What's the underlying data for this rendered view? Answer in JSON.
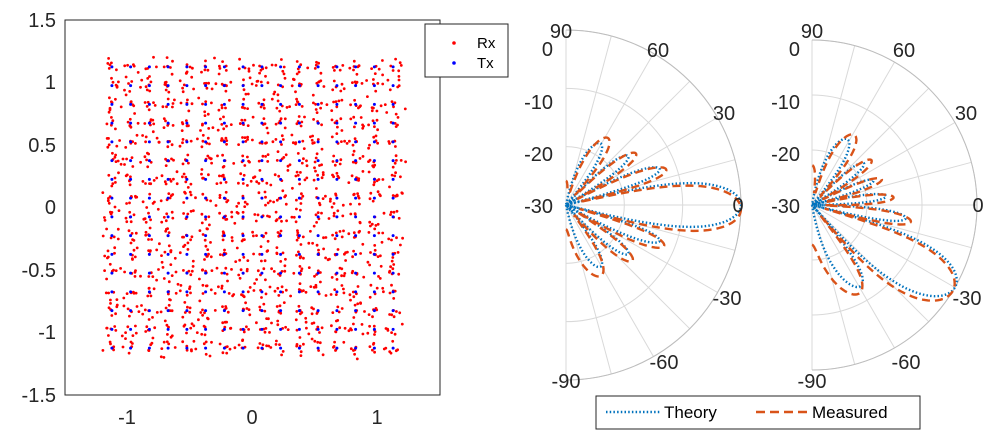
{
  "chart_data": [
    {
      "type": "scatter",
      "title": "",
      "xlabel": "",
      "ylabel": "",
      "xlim": [
        -1.5,
        1.5
      ],
      "ylim": [
        -1.5,
        1.5
      ],
      "x_ticks": [
        "-1",
        "0",
        "1"
      ],
      "y_ticks": [
        "1.5",
        "1",
        "0.5",
        "0",
        "-0.5",
        "-1",
        "-1.5"
      ],
      "grid": false,
      "legend_placement": "top-right",
      "constellation": {
        "grid_size": 16,
        "levels": [
          -1.125,
          -0.975,
          -0.825,
          -0.675,
          -0.525,
          -0.375,
          -0.225,
          -0.075,
          0.075,
          0.225,
          0.375,
          0.525,
          0.675,
          0.825,
          0.975,
          1.125
        ],
        "rx_scatter_std": 0.035,
        "rx_points_per_symbol": 6
      },
      "series": [
        {
          "name": "Rx",
          "color": "#ff0000",
          "marker": "dot"
        },
        {
          "name": "Tx",
          "color": "#0000ff",
          "marker": "dot"
        }
      ]
    },
    {
      "type": "line",
      "subtype": "polar-half",
      "title": "",
      "theta_ticks": [
        "90",
        "60",
        "30",
        "0",
        "-30",
        "-60",
        "-90"
      ],
      "r_ticks": [
        "0",
        "-10",
        "-20",
        "-30"
      ],
      "r_range_dB": [
        -30,
        0
      ],
      "theta_range_deg": [
        -90,
        90
      ],
      "steer_angle_deg": 0,
      "series": [
        {
          "name": "Theory",
          "color": "#0072bd",
          "style": "dotted"
        },
        {
          "name": "Measured",
          "color": "#d95319",
          "style": "dashed"
        }
      ]
    },
    {
      "type": "line",
      "subtype": "polar-half",
      "title": "",
      "theta_ticks": [
        "90",
        "60",
        "30",
        "0",
        "-30",
        "-60",
        "-90"
      ],
      "r_ticks": [
        "0",
        "-10",
        "-20",
        "-30"
      ],
      "r_range_dB": [
        -30,
        0
      ],
      "theta_range_deg": [
        -90,
        90
      ],
      "steer_angle_deg": -30,
      "series": [
        {
          "name": "Theory",
          "color": "#0072bd",
          "style": "dotted"
        },
        {
          "name": "Measured",
          "color": "#d95319",
          "style": "dashed"
        }
      ]
    }
  ],
  "legend_bottom": {
    "entries": [
      {
        "label": "Theory",
        "color": "#0072bd",
        "style": "dotted"
      },
      {
        "label": "Measured",
        "color": "#d95319",
        "style": "dashed"
      }
    ]
  }
}
